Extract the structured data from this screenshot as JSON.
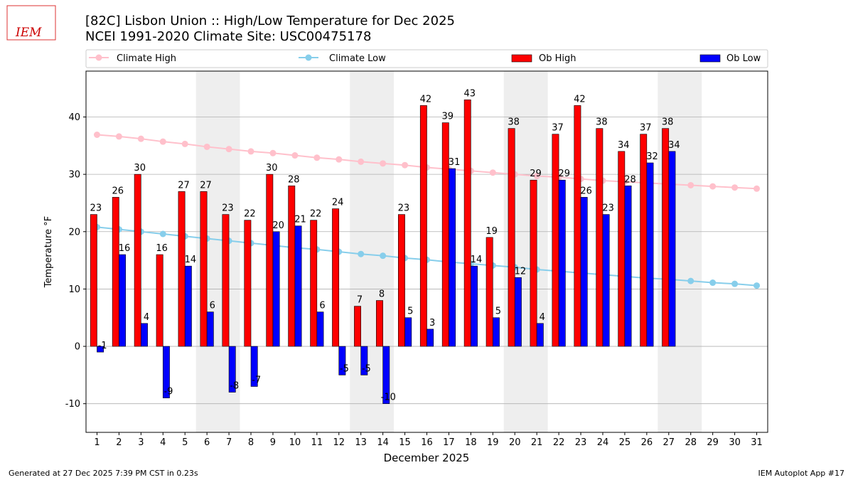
{
  "header": {
    "logo": "IEM"
  },
  "chart_data": {
    "type": "bar-line",
    "title": "[82C] Lisbon Union :: High/Low Temperature for Dec 2025",
    "subtitle": "NCEI 1991-2020 Climate Site: USC00475178",
    "xlabel": "December 2025",
    "ylabel": "Temperature °F",
    "x": [
      1,
      2,
      3,
      4,
      5,
      6,
      7,
      8,
      9,
      10,
      11,
      12,
      13,
      14,
      15,
      16,
      17,
      18,
      19,
      20,
      21,
      22,
      23,
      24,
      25,
      26,
      27,
      28,
      29,
      30,
      31
    ],
    "xlim": [
      0.5,
      31.5
    ],
    "xticks": [
      1,
      2,
      3,
      4,
      5,
      6,
      7,
      8,
      9,
      10,
      11,
      12,
      13,
      14,
      15,
      16,
      17,
      18,
      19,
      20,
      21,
      22,
      23,
      24,
      25,
      26,
      27,
      28,
      29,
      30,
      31
    ],
    "ylim": [
      -15,
      48
    ],
    "yticks": [
      -10,
      0,
      10,
      20,
      30,
      40
    ],
    "grid": true,
    "shaded_days": [
      [
        6,
        7
      ],
      [
        13,
        14
      ],
      [
        20,
        21
      ],
      [
        27,
        28
      ]
    ],
    "series": [
      {
        "name": "Climate High",
        "kind": "line",
        "color": "#ffc0cb",
        "values": [
          36.9,
          36.6,
          36.2,
          35.7,
          35.3,
          34.8,
          34.4,
          34.0,
          33.7,
          33.3,
          32.9,
          32.6,
          32.2,
          31.9,
          31.6,
          31.2,
          30.9,
          30.6,
          30.3,
          30.0,
          29.7,
          29.5,
          29.2,
          28.9,
          28.7,
          28.5,
          28.3,
          28.1,
          27.9,
          27.7,
          27.5
        ]
      },
      {
        "name": "Climate Low",
        "kind": "line",
        "color": "#87ceeb",
        "values": [
          20.8,
          20.4,
          20.0,
          19.6,
          19.2,
          18.8,
          18.4,
          18.0,
          17.6,
          17.2,
          16.9,
          16.5,
          16.1,
          15.8,
          15.4,
          15.1,
          14.7,
          14.4,
          14.1,
          13.8,
          13.4,
          13.1,
          12.8,
          12.5,
          12.2,
          11.9,
          11.7,
          11.4,
          11.1,
          10.9,
          10.6
        ]
      },
      {
        "name": "Ob High",
        "kind": "bar",
        "color": "#ff0000",
        "values": [
          23,
          26,
          30,
          16,
          27,
          27,
          23,
          22,
          30,
          28,
          22,
          24,
          7,
          8,
          23,
          42,
          39,
          43,
          19,
          38,
          29,
          37,
          42,
          38,
          34,
          37,
          38,
          null,
          null,
          null,
          null
        ]
      },
      {
        "name": "Ob Low",
        "kind": "bar",
        "color": "#0000ff",
        "values": [
          -1,
          16,
          4,
          -9,
          14,
          6,
          -8,
          -7,
          20,
          21,
          6,
          -5,
          -5,
          -10,
          5,
          3,
          31,
          14,
          5,
          12,
          4,
          29,
          26,
          23,
          28,
          32,
          34,
          null,
          null,
          null,
          null
        ]
      }
    ]
  },
  "footer": {
    "left": "Generated at 27 Dec 2025 7:39 PM CST in 0.23s",
    "right": "IEM Autoplot App #17"
  }
}
